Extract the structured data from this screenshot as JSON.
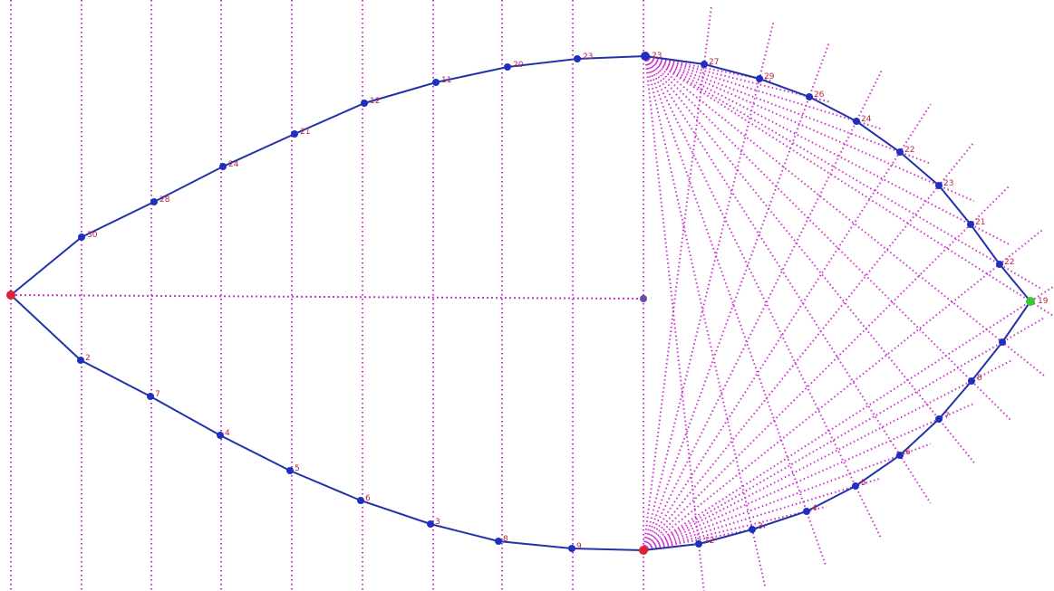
{
  "colors": {
    "guide": "#cc33cc",
    "curve": "#2233aa",
    "point": "#1f2fbf",
    "endpoint_red": "#dd2233",
    "endpoint_green": "#33cc33",
    "label": "#bb2244",
    "center": "#6a4aa8"
  },
  "labels": {
    "top_left": [
      "30",
      "28",
      "24",
      "21",
      "12",
      "11",
      "20",
      "23"
    ],
    "top_right": [
      "27",
      "29",
      "26",
      "24",
      "22",
      "23",
      "21",
      "22"
    ],
    "bottom_left": [
      "2",
      "7",
      "4",
      "5",
      "6",
      "3",
      "8",
      "9"
    ],
    "bottom_right": [
      "12",
      "3",
      "4",
      "5",
      "6",
      "7",
      "8"
    ],
    "apex_top": "23",
    "tip": "19"
  }
}
